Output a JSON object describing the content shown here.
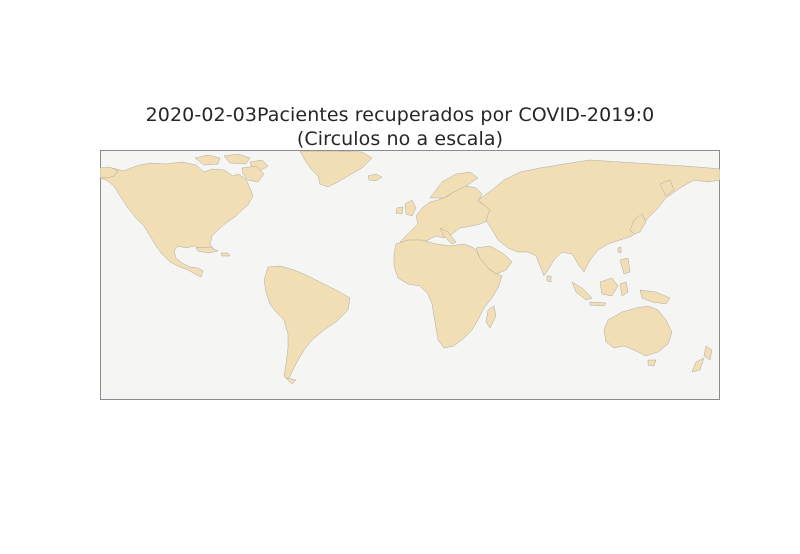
{
  "figure": {
    "title_line1": "2020-02-03Pacientes recuperados por COVID-2019:0",
    "title_line2": "(Circulos no a escala)"
  },
  "map": {
    "projection": "plate-carree",
    "ocean_color": "#f5f5f3",
    "land_color": "#f1deb4",
    "coastline_color": "#9a9a9a",
    "frame_color": "#8c8c8c"
  }
}
